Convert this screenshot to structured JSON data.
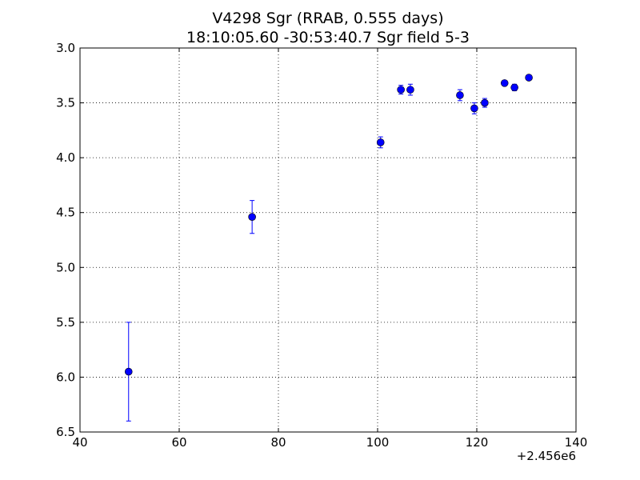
{
  "chart_data": {
    "type": "scatter",
    "title": "V4298 Sgr (RRAB, 0.555 days)",
    "subtitle": "18:10:05.60 -30:53:40.7 Sgr field 5-3",
    "xlabel": "",
    "ylabel": "",
    "x_offset_label": "+2.456e6",
    "xlim": [
      40,
      140
    ],
    "ylim": [
      6.5,
      3.0
    ],
    "y_inverted": true,
    "grid": true,
    "xticks": [
      "40",
      "60",
      "80",
      "100",
      "120",
      "140"
    ],
    "yticks": [
      "3.0",
      "3.5",
      "4.0",
      "4.5",
      "5.0",
      "5.5",
      "6.0",
      "6.5"
    ],
    "marker_color": "#0000ff",
    "series": [
      {
        "points": [
          {
            "x": 49.8,
            "y": 5.95,
            "err": 0.45
          },
          {
            "x": 74.7,
            "y": 4.54,
            "err": 0.15
          },
          {
            "x": 100.6,
            "y": 3.86,
            "err": 0.05
          },
          {
            "x": 104.7,
            "y": 3.38,
            "err": 0.04
          },
          {
            "x": 106.6,
            "y": 3.38,
            "err": 0.05
          },
          {
            "x": 116.6,
            "y": 3.43,
            "err": 0.05
          },
          {
            "x": 119.5,
            "y": 3.55,
            "err": 0.05
          },
          {
            "x": 121.6,
            "y": 3.5,
            "err": 0.04
          },
          {
            "x": 125.6,
            "y": 3.32,
            "err": 0.02
          },
          {
            "x": 127.6,
            "y": 3.36,
            "err": 0.03
          },
          {
            "x": 130.5,
            "y": 3.27,
            "err": 0.02
          }
        ]
      }
    ]
  }
}
